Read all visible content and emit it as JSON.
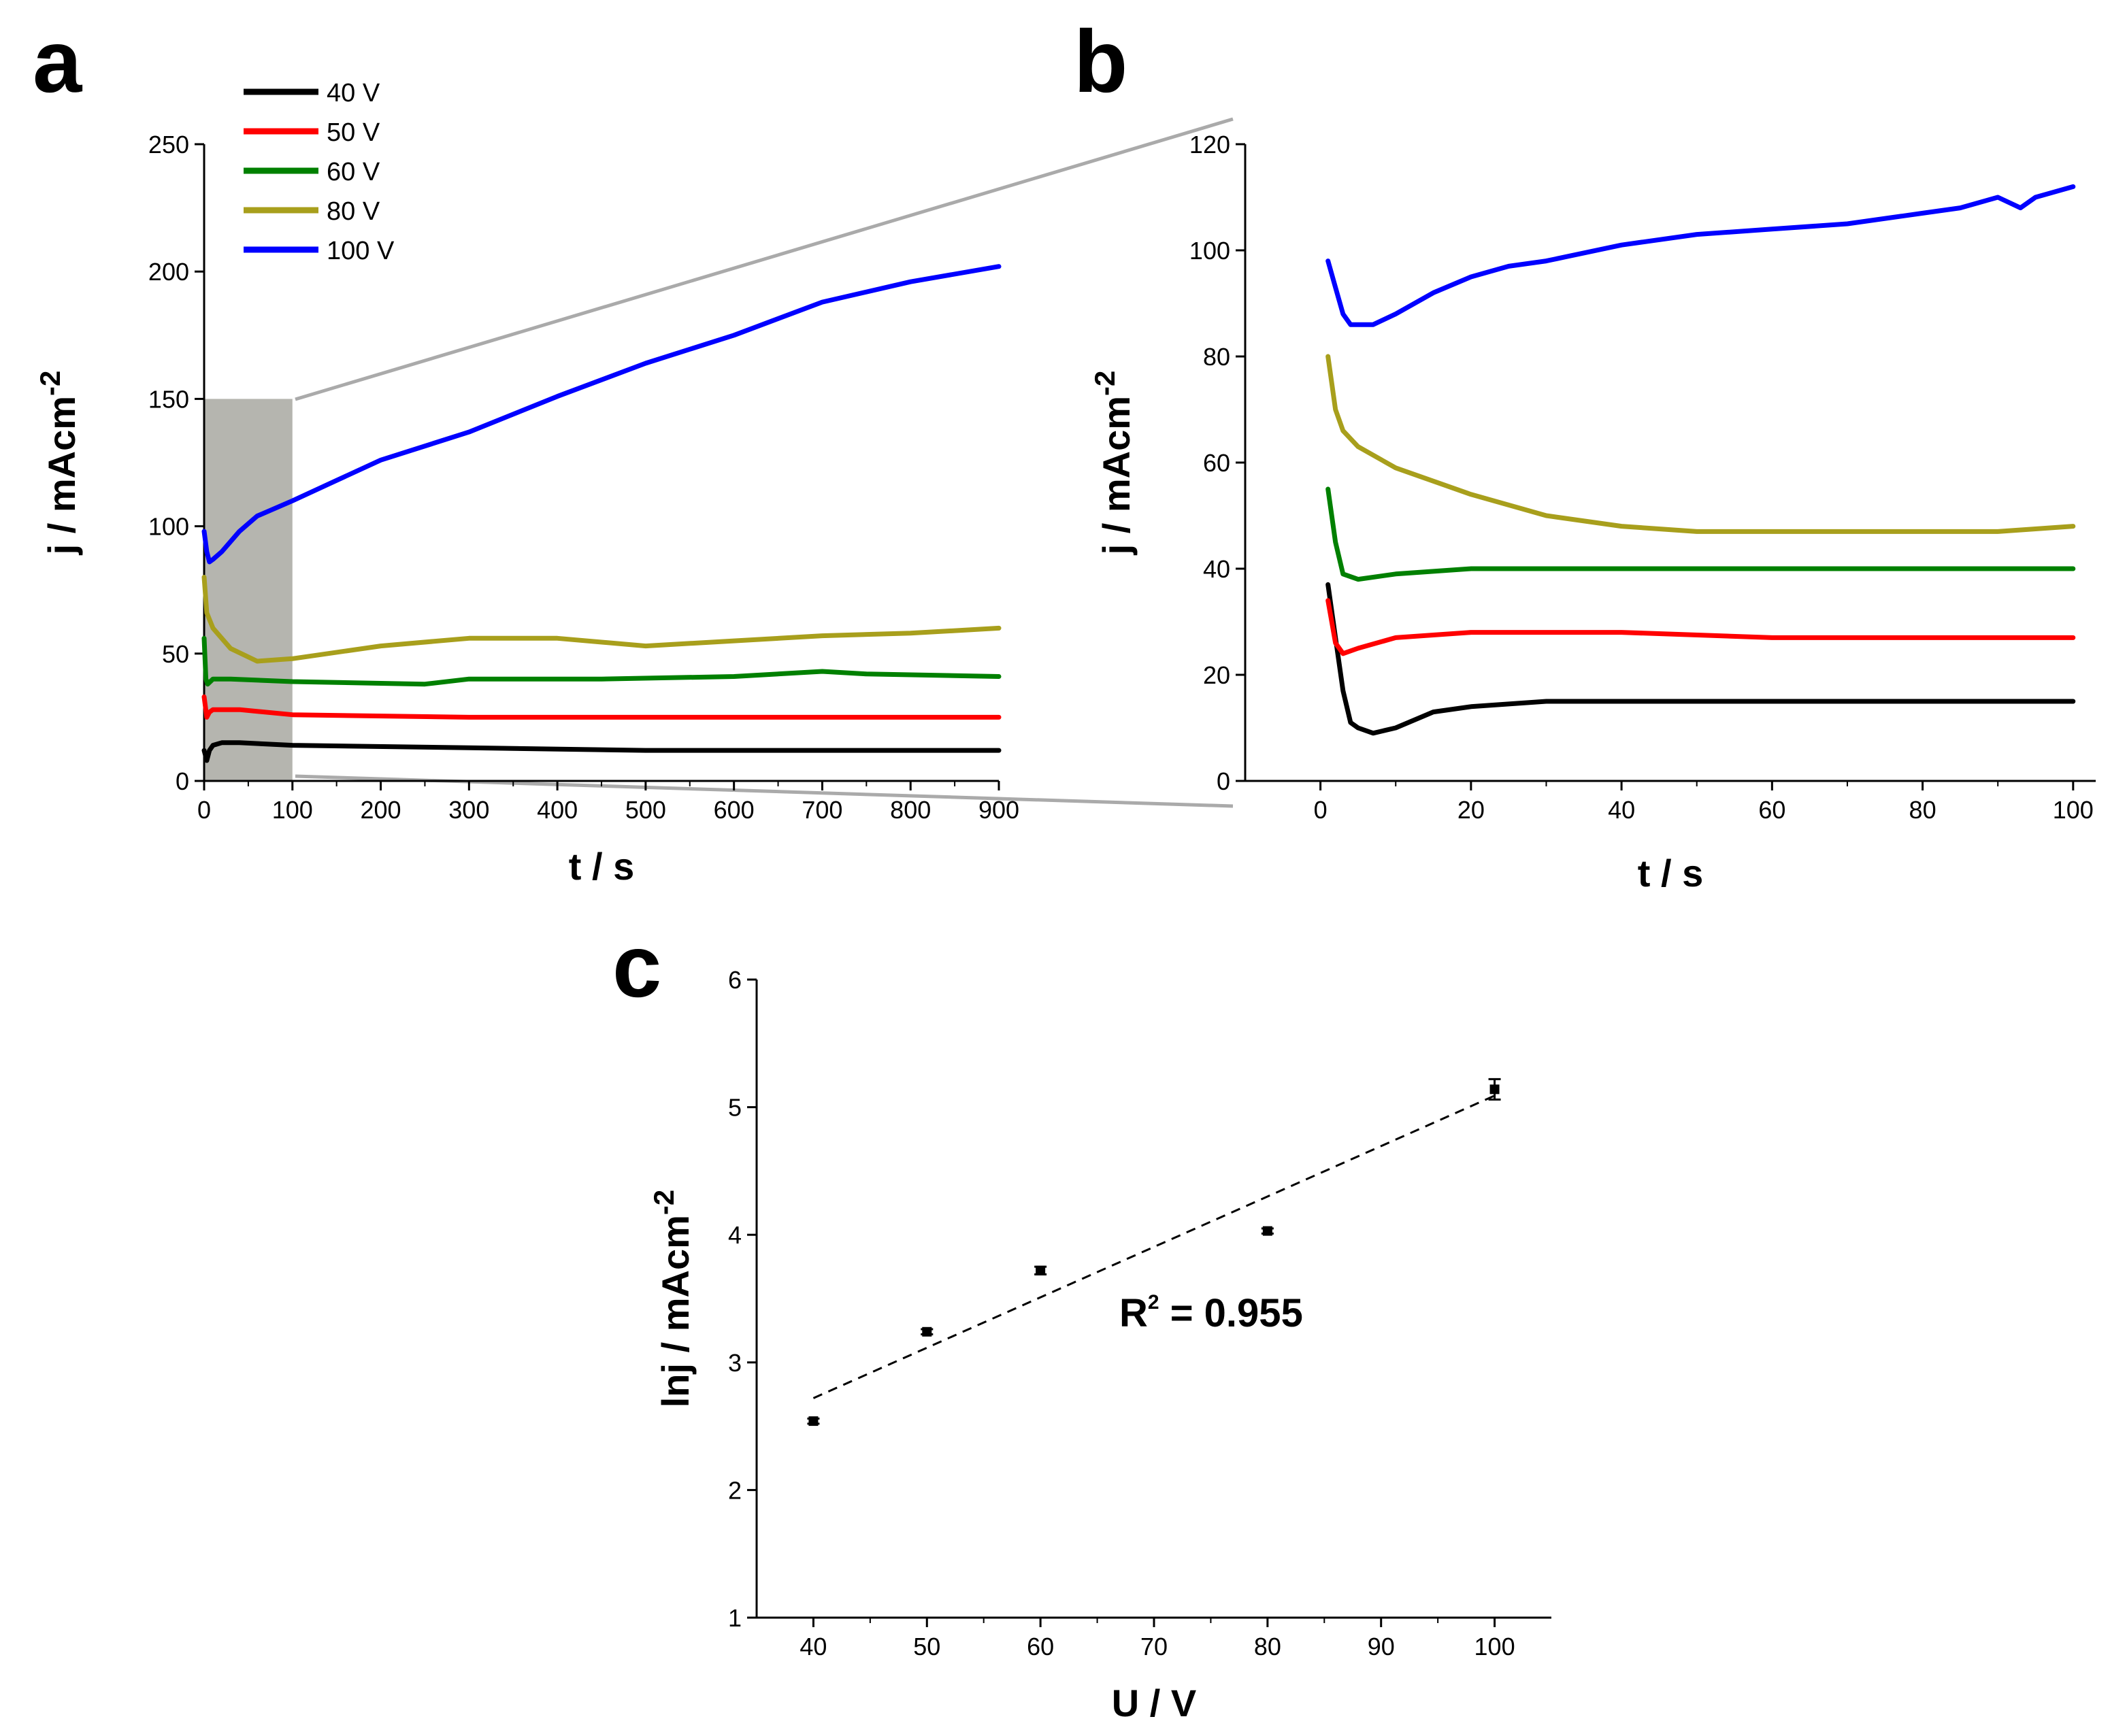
{
  "chart_data": [
    {
      "panel": "a",
      "type": "line",
      "xlabel": "t / s",
      "ylabel": "j / mAcm",
      "ylabel_sup": "-2",
      "xlim": [
        0,
        900
      ],
      "ylim": [
        0,
        250
      ],
      "xticks": [
        0,
        100,
        200,
        300,
        400,
        500,
        600,
        700,
        800,
        900
      ],
      "yticks": [
        0,
        50,
        100,
        150,
        200,
        250
      ],
      "legend_position": "top-left",
      "zoom_region": {
        "x": [
          0,
          100
        ],
        "y": [
          0,
          150
        ]
      },
      "series": [
        {
          "name": "40 V",
          "color": "#000000",
          "x": [
            0,
            3,
            6,
            10,
            20,
            40,
            100,
            300,
            500,
            700,
            900
          ],
          "y": [
            12,
            8,
            12,
            14,
            15,
            15,
            14,
            13,
            12,
            12,
            12
          ]
        },
        {
          "name": "50 V",
          "color": "#ff0000",
          "x": [
            0,
            3,
            6,
            10,
            20,
            40,
            100,
            300,
            500,
            700,
            900
          ],
          "y": [
            33,
            25,
            27,
            28,
            28,
            28,
            26,
            25,
            25,
            25,
            25
          ]
        },
        {
          "name": "60 V",
          "color": "#008000",
          "x": [
            0,
            2,
            4,
            10,
            30,
            100,
            250,
            300,
            450,
            600,
            700,
            750,
            900
          ],
          "y": [
            56,
            40,
            38,
            40,
            40,
            39,
            38,
            40,
            40,
            41,
            43,
            42,
            41
          ]
        },
        {
          "name": "80 V",
          "color": "#a89f1c",
          "x": [
            0,
            3,
            10,
            30,
            60,
            100,
            200,
            300,
            400,
            500,
            600,
            700,
            800,
            900
          ],
          "y": [
            80,
            66,
            60,
            52,
            47,
            48,
            53,
            56,
            56,
            53,
            55,
            57,
            58,
            60
          ]
        },
        {
          "name": "100 V",
          "color": "#0000ff",
          "x": [
            0,
            3,
            6,
            10,
            20,
            40,
            60,
            100,
            150,
            200,
            300,
            400,
            500,
            600,
            700,
            800,
            900
          ],
          "y": [
            98,
            90,
            86,
            87,
            90,
            98,
            104,
            110,
            118,
            126,
            137,
            151,
            164,
            175,
            188,
            196,
            202
          ]
        }
      ]
    },
    {
      "panel": "b",
      "type": "line",
      "xlabel": "t / s",
      "ylabel": "j / mAcm",
      "ylabel_sup": "-2",
      "xlim": [
        -10,
        103
      ],
      "ylim": [
        0,
        120
      ],
      "xticks": [
        0,
        20,
        40,
        60,
        80,
        100
      ],
      "yticks": [
        0,
        20,
        40,
        60,
        80,
        100,
        120
      ],
      "series": [
        {
          "name": "40 V",
          "color": "#000000",
          "x": [
            1,
            2,
            3,
            4,
            5,
            7,
            10,
            15,
            20,
            30,
            40,
            50,
            60,
            80,
            100
          ],
          "y": [
            37,
            27,
            17,
            11,
            10,
            9,
            10,
            13,
            14,
            15,
            15,
            15,
            15,
            15,
            15
          ]
        },
        {
          "name": "50 V",
          "color": "#ff0000",
          "x": [
            1,
            2,
            3,
            5,
            10,
            20,
            30,
            40,
            60,
            80,
            100
          ],
          "y": [
            34,
            26,
            24,
            25,
            27,
            28,
            28,
            28,
            27,
            27,
            27
          ]
        },
        {
          "name": "60 V",
          "color": "#008000",
          "x": [
            1,
            2,
            3,
            5,
            10,
            20,
            30,
            40,
            60,
            80,
            100
          ],
          "y": [
            55,
            45,
            39,
            38,
            39,
            40,
            40,
            40,
            40,
            40,
            40
          ]
        },
        {
          "name": "80 V",
          "color": "#a89f1c",
          "x": [
            1,
            2,
            3,
            5,
            10,
            20,
            30,
            40,
            50,
            60,
            70,
            80,
            90,
            100
          ],
          "y": [
            80,
            70,
            66,
            63,
            59,
            54,
            50,
            48,
            47,
            47,
            47,
            47,
            47,
            48
          ]
        },
        {
          "name": "100 V",
          "color": "#0000ff",
          "x": [
            1,
            2,
            3,
            4,
            5,
            7,
            10,
            15,
            20,
            25,
            30,
            40,
            50,
            60,
            70,
            80,
            85,
            90,
            93,
            95,
            100
          ],
          "y": [
            98,
            93,
            88,
            86,
            86,
            86,
            88,
            92,
            95,
            97,
            98,
            101,
            103,
            104,
            105,
            107,
            108,
            110,
            108,
            110,
            112
          ]
        }
      ]
    },
    {
      "panel": "c",
      "type": "scatter",
      "xlabel": "U / V",
      "ylabel": "lnj / mAcm",
      "ylabel_sup": "-2",
      "xlim": [
        35,
        105
      ],
      "ylim": [
        1,
        6
      ],
      "xticks": [
        40,
        50,
        60,
        70,
        80,
        90,
        100
      ],
      "yticks": [
        1,
        2,
        3,
        4,
        5,
        6
      ],
      "points": [
        {
          "x": 40,
          "y": 2.54,
          "err": 0.02
        },
        {
          "x": 50,
          "y": 3.24,
          "err": 0.02
        },
        {
          "x": 60,
          "y": 3.72,
          "err": 0.03
        },
        {
          "x": 80,
          "y": 4.03,
          "err": 0.02
        },
        {
          "x": 100,
          "y": 5.14,
          "err": 0.08
        }
      ],
      "fit": {
        "x": [
          40,
          100
        ],
        "y": [
          2.72,
          5.09
        ],
        "style": "dashed"
      },
      "annotation_prefix": "R",
      "annotation_sup": "2",
      "annotation_suffix": " = 0.955"
    }
  ]
}
